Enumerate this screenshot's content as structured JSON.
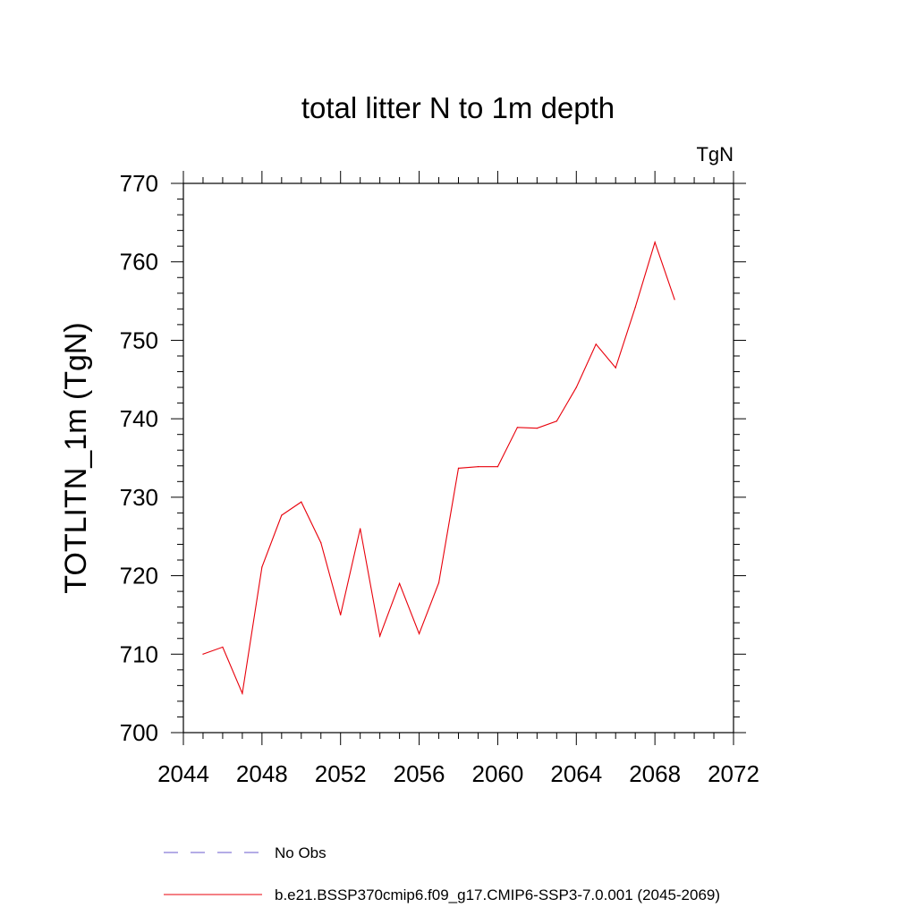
{
  "chart_data": {
    "type": "line",
    "title": "total litter N to 1m depth",
    "units_label": "TgN",
    "ylabel": "TOTLITN_1m  (TgN)",
    "xlabel": "",
    "xlim": [
      2044,
      2072
    ],
    "ylim": [
      700,
      770
    ],
    "x_ticks": [
      2044,
      2048,
      2052,
      2056,
      2060,
      2064,
      2068,
      2072
    ],
    "y_ticks": [
      700,
      710,
      720,
      730,
      740,
      750,
      760,
      770
    ],
    "x_tick_labels": [
      "2044",
      "2048",
      "2052",
      "2056",
      "2060",
      "2064",
      "2068",
      "2072"
    ],
    "y_tick_labels": [
      "700",
      "710",
      "720",
      "730",
      "740",
      "750",
      "760",
      "770"
    ],
    "grid": false,
    "legend_position": "bottom",
    "series": [
      {
        "name": "b.e21.BSSP370cmip6.f09_g17.CMIP6-SSP3-7.0.001 (2045-2069)",
        "color": "#e8000b",
        "style": "solid",
        "x": [
          2045,
          2046,
          2047,
          2048,
          2049,
          2050,
          2051,
          2052,
          2053,
          2054,
          2055,
          2056,
          2057,
          2058,
          2059,
          2060,
          2061,
          2062,
          2063,
          2064,
          2065,
          2066,
          2067,
          2068,
          2069
        ],
        "y": [
          710.0,
          710.9,
          705.0,
          721.1,
          727.7,
          729.4,
          724.2,
          715.0,
          726.0,
          712.3,
          719.0,
          712.6,
          719.1,
          733.7,
          733.9,
          733.9,
          738.9,
          738.8,
          739.7,
          744.0,
          749.5,
          746.5,
          754.2,
          762.5,
          755.2
        ]
      }
    ],
    "legend": [
      {
        "label": "No Obs",
        "color": "#6a5acd",
        "style": "dashed"
      },
      {
        "label": "b.e21.BSSP370cmip6.f09_g17.CMIP6-SSP3-7.0.001 (2045-2069)",
        "color": "#e8000b",
        "style": "solid"
      }
    ]
  }
}
